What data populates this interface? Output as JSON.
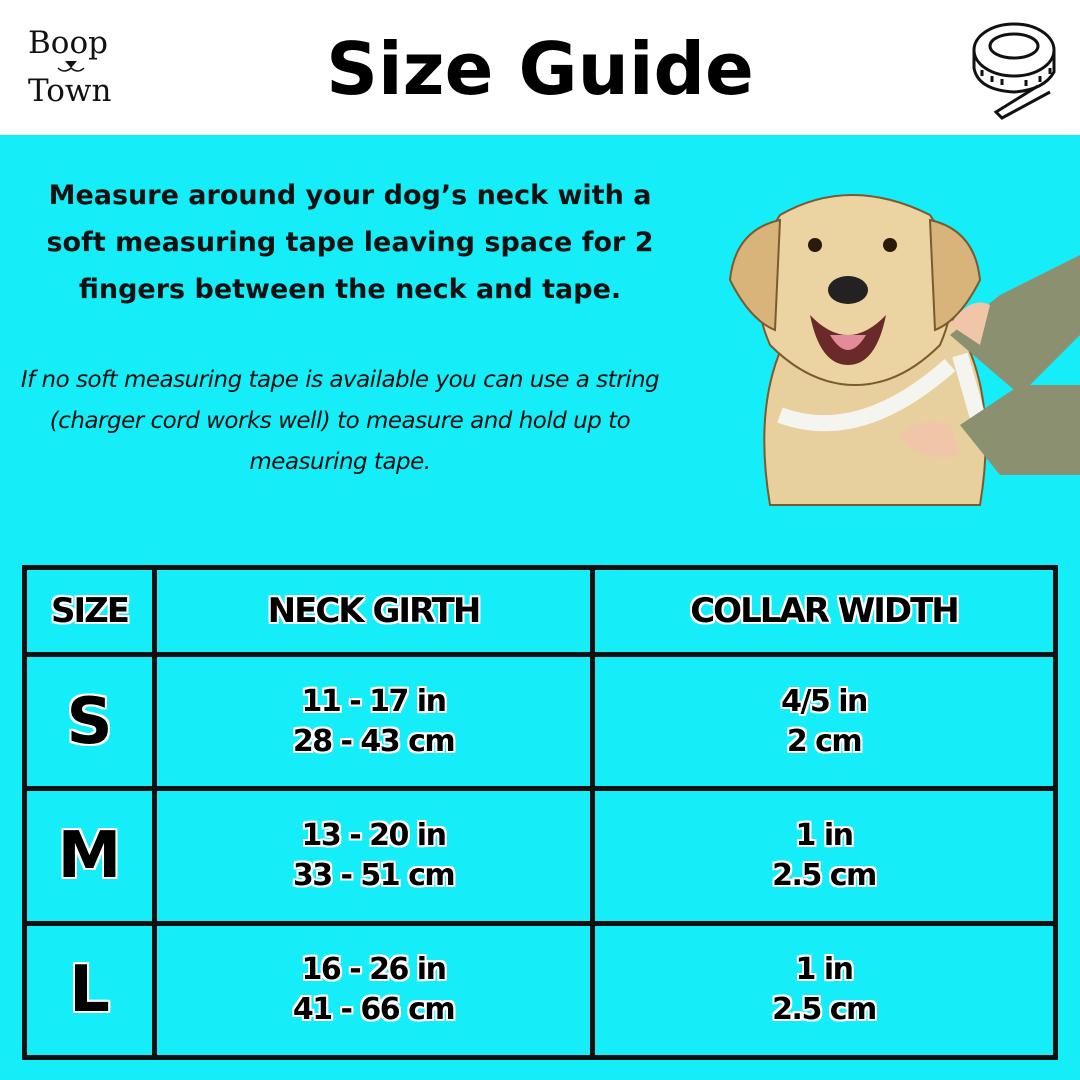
{
  "header": {
    "logo": {
      "line1": "Boop",
      "line2": "Town"
    },
    "title": "Size Guide",
    "icon": "measuring-tape-icon"
  },
  "intro": {
    "main": "Measure around your dog’s neck with a soft measuring tape leaving space for 2 fingers between the neck and tape.",
    "note": "If no soft measuring tape is available you can use a string (charger cord works well) to measure and hold up to measuring tape."
  },
  "illustration": "dog-being-measured",
  "colors": {
    "background": "#15eef8",
    "header": "#ffffff",
    "text": "#000000"
  },
  "table": {
    "headers": [
      "SIZE",
      "NECK GIRTH",
      "COLLAR WIDTH"
    ],
    "rows": [
      {
        "size": "S",
        "girth_in": "11 - 17 in",
        "girth_cm": "28 - 43 cm",
        "width_in": "4/5 in",
        "width_cm": "2 cm"
      },
      {
        "size": "M",
        "girth_in": "13 - 20 in",
        "girth_cm": "33 - 51 cm",
        "width_in": "1 in",
        "width_cm": "2.5 cm"
      },
      {
        "size": "L",
        "girth_in": "16 - 26 in",
        "girth_cm": "41 - 66 cm",
        "width_in": "1 in",
        "width_cm": "2.5 cm"
      }
    ]
  }
}
